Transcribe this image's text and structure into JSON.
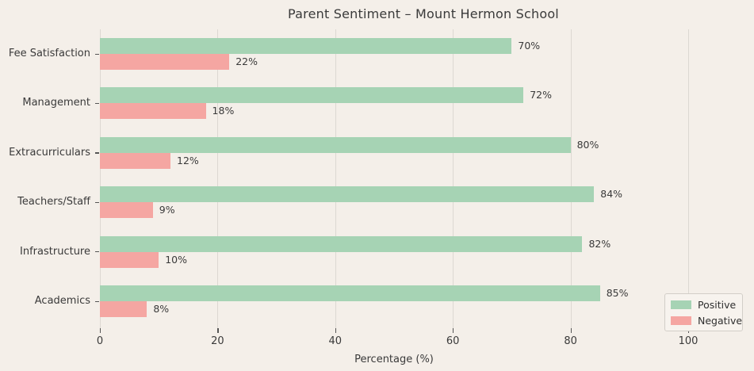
{
  "title": "Parent Sentiment – Mount Hermon School",
  "legend": {
    "positive_label": "Positive",
    "negative_label": "Negative"
  },
  "colors": {
    "positive": "#a6d3b4",
    "negative": "#f5a6a2",
    "background": "#f4efe9",
    "grid": "#dcd8d2",
    "text": "#3a3a3a"
  },
  "chart_data": {
    "type": "bar",
    "orientation": "horizontal",
    "title": "Parent Sentiment – Mount Hermon School",
    "xlabel": "Percentage (%)",
    "xlim": [
      0,
      100
    ],
    "xticks": [
      0,
      20,
      40,
      60,
      80,
      100
    ],
    "grid": true,
    "legend_position": "lower right",
    "categories": [
      "Fee Satisfaction",
      "Management",
      "Extracurriculars",
      "Teachers/Staff",
      "Infrastructure",
      "Academics"
    ],
    "series": [
      {
        "name": "Positive",
        "color": "#a6d3b4",
        "values": [
          70,
          72,
          80,
          84,
          82,
          85
        ],
        "data_labels": [
          "70%",
          "72%",
          "80%",
          "84%",
          "82%",
          "85%"
        ]
      },
      {
        "name": "Negative",
        "color": "#f5a6a2",
        "values": [
          22,
          18,
          12,
          9,
          10,
          8
        ],
        "data_labels": [
          "22%",
          "18%",
          "12%",
          "9%",
          "10%",
          "8%"
        ]
      }
    ]
  }
}
